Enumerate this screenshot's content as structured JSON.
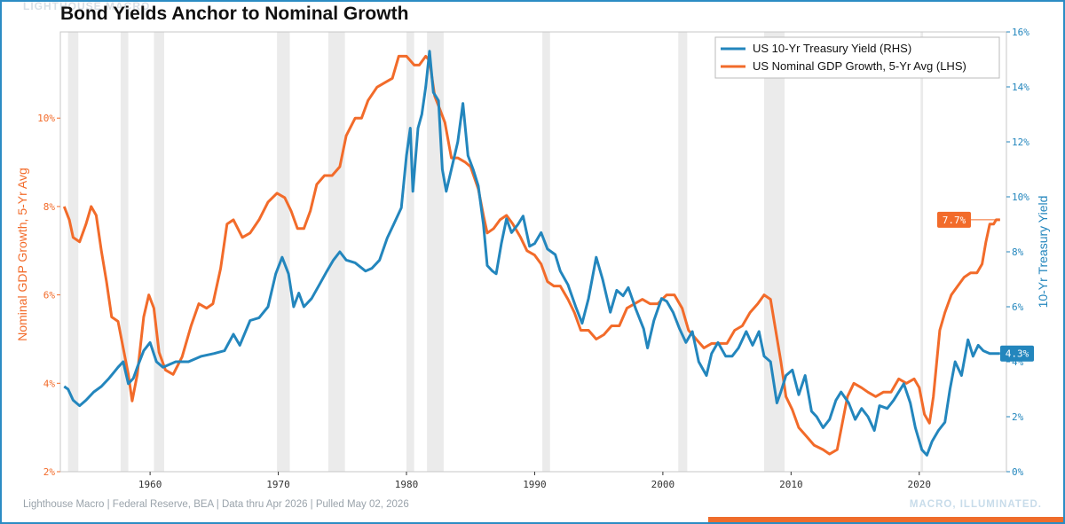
{
  "header": {
    "title": "Bond Yields Anchor to Nominal Growth",
    "watermark_top": "LIGHTHOUSE MACRO"
  },
  "footer": {
    "source": "Lighthouse Macro | Federal Reserve, BEA | Data thru Apr 2026 | Pulled May 02, 2026",
    "tagline": "MACRO, ILLUMINATED."
  },
  "colors": {
    "gdp": "#f26b2a",
    "yield": "#2386bd",
    "recession": "#ebebeb",
    "frame": "#2b8cc4"
  },
  "chart_data": {
    "type": "line",
    "x_axis": {
      "ticks": [
        1960,
        1970,
        1980,
        1990,
        2000,
        2010,
        2020
      ],
      "range": [
        1953.0,
        2026.8
      ]
    },
    "left_axis": {
      "label": "Nominal GDP Growth, 5-Yr Avg",
      "ticks": [
        "2%",
        "4%",
        "6%",
        "8%",
        "10%"
      ],
      "range": [
        2,
        11.95
      ]
    },
    "right_axis": {
      "label": "10-Yr Treasury Yield",
      "ticks": [
        "0%",
        "2%",
        "4%",
        "6%",
        "8%",
        "10%",
        "12%",
        "14%",
        "16%"
      ],
      "range": [
        0,
        16
      ]
    },
    "legend": {
      "position": "top-right"
    },
    "grid": false,
    "recessions": [
      [
        1953.6,
        1954.4
      ],
      [
        1957.7,
        1958.3
      ],
      [
        1960.3,
        1961.1
      ],
      [
        1969.9,
        1970.9
      ],
      [
        1973.9,
        1975.2
      ],
      [
        1980.0,
        1980.6
      ],
      [
        1981.6,
        1982.9
      ],
      [
        1990.6,
        1991.2
      ],
      [
        2001.2,
        2001.9
      ],
      [
        2007.9,
        2009.5
      ],
      [
        2020.1,
        2020.3
      ]
    ],
    "series": [
      {
        "name": "US 10-Yr Treasury Yield (RHS)",
        "axis": "right",
        "end_label": "4.3%",
        "points": [
          [
            1953.3,
            3.1
          ],
          [
            1953.6,
            3.0
          ],
          [
            1954.0,
            2.6
          ],
          [
            1954.5,
            2.4
          ],
          [
            1955.0,
            2.6
          ],
          [
            1955.6,
            2.9
          ],
          [
            1956.2,
            3.1
          ],
          [
            1956.8,
            3.4
          ],
          [
            1957.5,
            3.8
          ],
          [
            1957.9,
            4.0
          ],
          [
            1958.3,
            3.2
          ],
          [
            1958.7,
            3.4
          ],
          [
            1959.0,
            3.8
          ],
          [
            1959.5,
            4.4
          ],
          [
            1960.0,
            4.7
          ],
          [
            1960.5,
            4.0
          ],
          [
            1961.0,
            3.8
          ],
          [
            1961.5,
            3.9
          ],
          [
            1962.0,
            4.0
          ],
          [
            1963.0,
            4.0
          ],
          [
            1964.0,
            4.2
          ],
          [
            1965.0,
            4.3
          ],
          [
            1965.8,
            4.4
          ],
          [
            1966.5,
            5.0
          ],
          [
            1967.0,
            4.6
          ],
          [
            1967.8,
            5.5
          ],
          [
            1968.5,
            5.6
          ],
          [
            1969.2,
            6.0
          ],
          [
            1969.8,
            7.2
          ],
          [
            1970.3,
            7.8
          ],
          [
            1970.8,
            7.2
          ],
          [
            1971.2,
            6.0
          ],
          [
            1971.6,
            6.5
          ],
          [
            1972.0,
            6.0
          ],
          [
            1972.6,
            6.3
          ],
          [
            1973.2,
            6.8
          ],
          [
            1973.8,
            7.3
          ],
          [
            1974.3,
            7.7
          ],
          [
            1974.8,
            8.0
          ],
          [
            1975.3,
            7.7
          ],
          [
            1976.0,
            7.6
          ],
          [
            1976.8,
            7.3
          ],
          [
            1977.3,
            7.4
          ],
          [
            1977.9,
            7.7
          ],
          [
            1978.5,
            8.5
          ],
          [
            1979.0,
            9.0
          ],
          [
            1979.6,
            9.6
          ],
          [
            1980.0,
            11.5
          ],
          [
            1980.3,
            12.5
          ],
          [
            1980.5,
            10.2
          ],
          [
            1980.9,
            12.5
          ],
          [
            1981.2,
            13.0
          ],
          [
            1981.5,
            14.0
          ],
          [
            1981.8,
            15.3
          ],
          [
            1982.1,
            13.8
          ],
          [
            1982.5,
            13.5
          ],
          [
            1982.8,
            11.0
          ],
          [
            1983.1,
            10.2
          ],
          [
            1983.5,
            11.0
          ],
          [
            1984.0,
            12.0
          ],
          [
            1984.4,
            13.4
          ],
          [
            1984.8,
            11.5
          ],
          [
            1985.2,
            11.0
          ],
          [
            1985.6,
            10.4
          ],
          [
            1986.0,
            9.0
          ],
          [
            1986.3,
            7.5
          ],
          [
            1986.7,
            7.3
          ],
          [
            1987.0,
            7.2
          ],
          [
            1987.4,
            8.3
          ],
          [
            1987.8,
            9.2
          ],
          [
            1988.2,
            8.7
          ],
          [
            1988.7,
            9.0
          ],
          [
            1989.1,
            9.3
          ],
          [
            1989.6,
            8.2
          ],
          [
            1990.0,
            8.3
          ],
          [
            1990.5,
            8.7
          ],
          [
            1991.0,
            8.1
          ],
          [
            1991.6,
            7.9
          ],
          [
            1992.0,
            7.3
          ],
          [
            1992.6,
            6.8
          ],
          [
            1993.2,
            6.0
          ],
          [
            1993.7,
            5.4
          ],
          [
            1994.2,
            6.3
          ],
          [
            1994.8,
            7.8
          ],
          [
            1995.3,
            7.0
          ],
          [
            1995.9,
            5.8
          ],
          [
            1996.4,
            6.6
          ],
          [
            1996.9,
            6.4
          ],
          [
            1997.3,
            6.7
          ],
          [
            1997.9,
            5.9
          ],
          [
            1998.5,
            5.2
          ],
          [
            1998.8,
            4.5
          ],
          [
            1999.3,
            5.5
          ],
          [
            1999.9,
            6.3
          ],
          [
            2000.3,
            6.2
          ],
          [
            2000.8,
            5.8
          ],
          [
            2001.3,
            5.2
          ],
          [
            2001.8,
            4.7
          ],
          [
            2002.3,
            5.1
          ],
          [
            2002.8,
            4.0
          ],
          [
            2003.4,
            3.5
          ],
          [
            2003.8,
            4.3
          ],
          [
            2004.3,
            4.7
          ],
          [
            2004.9,
            4.2
          ],
          [
            2005.4,
            4.2
          ],
          [
            2005.9,
            4.5
          ],
          [
            2006.5,
            5.1
          ],
          [
            2007.0,
            4.6
          ],
          [
            2007.5,
            5.1
          ],
          [
            2007.9,
            4.2
          ],
          [
            2008.4,
            4.0
          ],
          [
            2008.9,
            2.5
          ],
          [
            2009.2,
            2.9
          ],
          [
            2009.6,
            3.5
          ],
          [
            2010.1,
            3.7
          ],
          [
            2010.6,
            2.8
          ],
          [
            2011.1,
            3.5
          ],
          [
            2011.6,
            2.2
          ],
          [
            2012.0,
            2.0
          ],
          [
            2012.5,
            1.6
          ],
          [
            2013.0,
            1.9
          ],
          [
            2013.5,
            2.6
          ],
          [
            2013.9,
            2.9
          ],
          [
            2014.5,
            2.5
          ],
          [
            2015.0,
            1.9
          ],
          [
            2015.5,
            2.3
          ],
          [
            2016.0,
            2.0
          ],
          [
            2016.5,
            1.5
          ],
          [
            2016.9,
            2.4
          ],
          [
            2017.5,
            2.3
          ],
          [
            2018.0,
            2.6
          ],
          [
            2018.8,
            3.2
          ],
          [
            2019.3,
            2.5
          ],
          [
            2019.7,
            1.6
          ],
          [
            2020.2,
            0.8
          ],
          [
            2020.6,
            0.6
          ],
          [
            2021.0,
            1.1
          ],
          [
            2021.5,
            1.5
          ],
          [
            2022.0,
            1.8
          ],
          [
            2022.4,
            3.0
          ],
          [
            2022.8,
            4.0
          ],
          [
            2023.3,
            3.5
          ],
          [
            2023.8,
            4.8
          ],
          [
            2024.2,
            4.2
          ],
          [
            2024.6,
            4.6
          ],
          [
            2025.0,
            4.4
          ],
          [
            2025.5,
            4.3
          ],
          [
            2026.0,
            4.3
          ],
          [
            2026.3,
            4.3
          ]
        ]
      },
      {
        "name": "US Nominal GDP Growth, 5-Yr Avg (LHS)",
        "axis": "left",
        "end_label": "7.7%",
        "points": [
          [
            1953.3,
            8.0
          ],
          [
            1953.7,
            7.7
          ],
          [
            1954.0,
            7.3
          ],
          [
            1954.5,
            7.2
          ],
          [
            1955.0,
            7.6
          ],
          [
            1955.4,
            8.0
          ],
          [
            1955.8,
            7.8
          ],
          [
            1956.2,
            7.0
          ],
          [
            1956.6,
            6.3
          ],
          [
            1957.0,
            5.5
          ],
          [
            1957.5,
            5.4
          ],
          [
            1957.9,
            4.8
          ],
          [
            1958.3,
            4.2
          ],
          [
            1958.6,
            3.6
          ],
          [
            1959.0,
            4.2
          ],
          [
            1959.5,
            5.5
          ],
          [
            1959.9,
            6.0
          ],
          [
            1960.3,
            5.7
          ],
          [
            1960.7,
            4.7
          ],
          [
            1961.2,
            4.3
          ],
          [
            1961.8,
            4.2
          ],
          [
            1962.5,
            4.6
          ],
          [
            1963.2,
            5.3
          ],
          [
            1963.8,
            5.8
          ],
          [
            1964.4,
            5.7
          ],
          [
            1964.9,
            5.8
          ],
          [
            1965.5,
            6.6
          ],
          [
            1966.0,
            7.6
          ],
          [
            1966.5,
            7.7
          ],
          [
            1967.2,
            7.3
          ],
          [
            1967.8,
            7.4
          ],
          [
            1968.5,
            7.7
          ],
          [
            1969.2,
            8.1
          ],
          [
            1969.9,
            8.3
          ],
          [
            1970.5,
            8.2
          ],
          [
            1971.0,
            7.9
          ],
          [
            1971.5,
            7.5
          ],
          [
            1972.0,
            7.5
          ],
          [
            1972.5,
            7.9
          ],
          [
            1973.0,
            8.5
          ],
          [
            1973.6,
            8.7
          ],
          [
            1974.2,
            8.7
          ],
          [
            1974.8,
            8.9
          ],
          [
            1975.3,
            9.6
          ],
          [
            1976.0,
            10.0
          ],
          [
            1976.5,
            10.0
          ],
          [
            1977.0,
            10.4
          ],
          [
            1977.7,
            10.7
          ],
          [
            1978.3,
            10.8
          ],
          [
            1978.9,
            10.9
          ],
          [
            1979.4,
            11.4
          ],
          [
            1980.0,
            11.4
          ],
          [
            1980.6,
            11.2
          ],
          [
            1981.0,
            11.2
          ],
          [
            1981.5,
            11.4
          ],
          [
            1981.8,
            11.3
          ],
          [
            1982.2,
            10.5
          ],
          [
            1982.6,
            10.2
          ],
          [
            1983.0,
            9.9
          ],
          [
            1983.5,
            9.1
          ],
          [
            1984.0,
            9.1
          ],
          [
            1984.6,
            9.0
          ],
          [
            1985.0,
            8.9
          ],
          [
            1985.6,
            8.4
          ],
          [
            1986.0,
            7.8
          ],
          [
            1986.3,
            7.4
          ],
          [
            1986.8,
            7.5
          ],
          [
            1987.3,
            7.7
          ],
          [
            1987.8,
            7.8
          ],
          [
            1988.3,
            7.6
          ],
          [
            1988.9,
            7.3
          ],
          [
            1989.4,
            7.0
          ],
          [
            1990.0,
            6.9
          ],
          [
            1990.5,
            6.7
          ],
          [
            1991.0,
            6.3
          ],
          [
            1991.5,
            6.2
          ],
          [
            1992.0,
            6.2
          ],
          [
            1992.6,
            5.9
          ],
          [
            1993.1,
            5.6
          ],
          [
            1993.6,
            5.2
          ],
          [
            1994.2,
            5.2
          ],
          [
            1994.8,
            5.0
          ],
          [
            1995.4,
            5.1
          ],
          [
            1996.0,
            5.3
          ],
          [
            1996.6,
            5.3
          ],
          [
            1997.2,
            5.7
          ],
          [
            1997.8,
            5.8
          ],
          [
            1998.4,
            5.9
          ],
          [
            1999.0,
            5.8
          ],
          [
            1999.6,
            5.8
          ],
          [
            2000.3,
            6.0
          ],
          [
            2000.9,
            6.0
          ],
          [
            2001.5,
            5.7
          ],
          [
            2002.0,
            5.2
          ],
          [
            2002.6,
            5.0
          ],
          [
            2003.2,
            4.8
          ],
          [
            2003.8,
            4.9
          ],
          [
            2004.4,
            4.9
          ],
          [
            2005.0,
            4.9
          ],
          [
            2005.6,
            5.2
          ],
          [
            2006.2,
            5.3
          ],
          [
            2006.8,
            5.6
          ],
          [
            2007.4,
            5.8
          ],
          [
            2007.9,
            6.0
          ],
          [
            2008.4,
            5.9
          ],
          [
            2008.8,
            5.2
          ],
          [
            2009.2,
            4.5
          ],
          [
            2009.6,
            3.7
          ],
          [
            2010.1,
            3.4
          ],
          [
            2010.6,
            3.0
          ],
          [
            2011.2,
            2.8
          ],
          [
            2011.8,
            2.6
          ],
          [
            2012.5,
            2.5
          ],
          [
            2013.0,
            2.4
          ],
          [
            2013.6,
            2.5
          ],
          [
            2014.0,
            3.1
          ],
          [
            2014.4,
            3.7
          ],
          [
            2014.9,
            4.0
          ],
          [
            2015.5,
            3.9
          ],
          [
            2016.0,
            3.8
          ],
          [
            2016.6,
            3.7
          ],
          [
            2017.2,
            3.8
          ],
          [
            2017.8,
            3.8
          ],
          [
            2018.4,
            4.1
          ],
          [
            2019.0,
            4.0
          ],
          [
            2019.6,
            4.1
          ],
          [
            2020.0,
            3.9
          ],
          [
            2020.4,
            3.3
          ],
          [
            2020.8,
            3.1
          ],
          [
            2021.1,
            3.7
          ],
          [
            2021.6,
            5.2
          ],
          [
            2022.0,
            5.6
          ],
          [
            2022.5,
            6.0
          ],
          [
            2023.0,
            6.2
          ],
          [
            2023.5,
            6.4
          ],
          [
            2024.0,
            6.5
          ],
          [
            2024.5,
            6.5
          ],
          [
            2024.9,
            6.7
          ],
          [
            2025.2,
            7.2
          ],
          [
            2025.5,
            7.6
          ],
          [
            2025.8,
            7.6
          ],
          [
            2026.0,
            7.7
          ],
          [
            2026.3,
            7.7
          ]
        ]
      }
    ]
  }
}
